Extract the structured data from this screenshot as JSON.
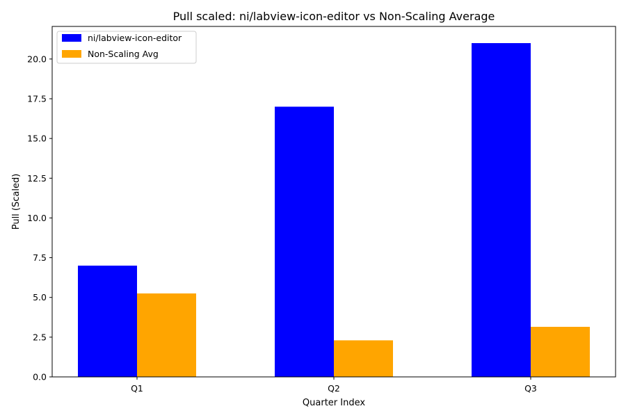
{
  "chart_data": {
    "type": "bar",
    "title": "Pull scaled: ni/labview-icon-editor vs Non-Scaling Average",
    "xlabel": "Quarter Index",
    "ylabel": "Pull (Scaled)",
    "categories": [
      "Q1",
      "Q2",
      "Q3"
    ],
    "series": [
      {
        "name": "ni/labview-icon-editor",
        "values": [
          7.0,
          17.0,
          21.0
        ],
        "color": "#0000ff"
      },
      {
        "name": "Non-Scaling Avg",
        "values": [
          5.25,
          2.3,
          3.15
        ],
        "color": "#ffa500"
      }
    ],
    "ylim": [
      0,
      22.05
    ],
    "yticks": [
      0.0,
      2.5,
      5.0,
      7.5,
      10.0,
      12.5,
      15.0,
      17.5,
      20.0
    ],
    "ytick_labels": [
      "0.0",
      "2.5",
      "5.0",
      "7.5",
      "10.0",
      "12.5",
      "15.0",
      "17.5",
      "20.0"
    ],
    "grid": false,
    "legend_position": "top-left"
  }
}
